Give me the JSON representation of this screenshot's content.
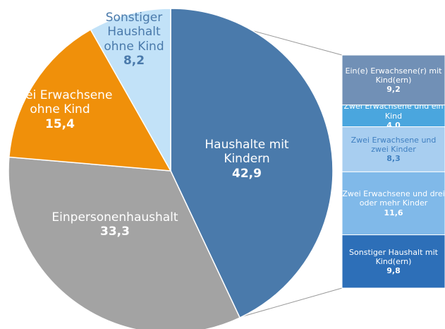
{
  "chart_data": [
    {
      "type": "pie",
      "categories": [
        "Haushalte mit Kindern",
        "Einpersonenhaushalt",
        "Zwei Erwachsene ohne Kind",
        "Sonstiger Haushalt ohne Kind"
      ],
      "values": [
        42.9,
        33.3,
        15.4,
        8.2
      ],
      "value_labels": [
        "42,9",
        "33,3",
        "15,4",
        "8,2"
      ],
      "colors": [
        "#4a7aab",
        "#a3a3a3",
        "#f0900a",
        "#c2e2f8"
      ]
    },
    {
      "type": "bar",
      "stacked": true,
      "categories": [
        "Ein(e) Erwachsene(r) mit Kind(ern)",
        "Zwei Erwachsene und ein Kind",
        "Zwei Erwachsene und zwei Kinder",
        "Zwei Erwachsene und drei oder mehr Kinder",
        "Sonstiger Haushalt mit Kind(ern)"
      ],
      "values": [
        9.2,
        4.0,
        8.3,
        11.6,
        9.8
      ],
      "value_labels": [
        "9,2",
        "4,0",
        "8,3",
        "11,6",
        "9,8"
      ],
      "colors": [
        "#7190b6",
        "#4aa6de",
        "#a8cef0",
        "#80b9e9",
        "#2d6fb8"
      ]
    }
  ]
}
